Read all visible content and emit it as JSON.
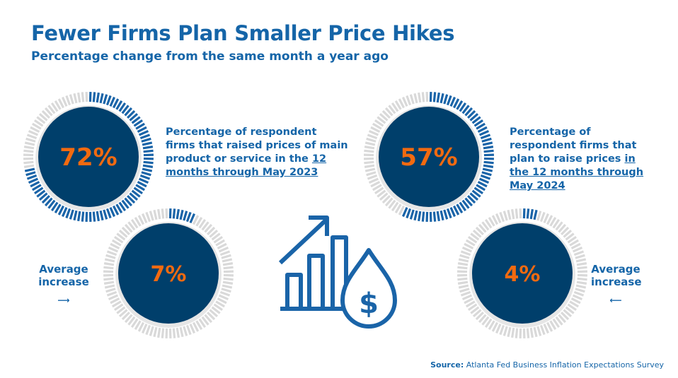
{
  "header": {
    "title": "Fewer Firms Plan Smaller Price Hikes",
    "subtitle": "Percentage change from the same month a year ago"
  },
  "chart_data": {
    "type": "gauge",
    "gauges": [
      {
        "label": "72%",
        "value": 72,
        "description_pre": "Percentage of respondent firms that raised prices of main product or service in the ",
        "description_link": "12 months through May 2023"
      },
      {
        "label": "7%",
        "value": 7,
        "caption": "Average increase"
      },
      {
        "label": "57%",
        "value": 57,
        "description_pre": "Percentage of respondent firms that plan to raise prices ",
        "description_link": "in the 12 months through May 2024"
      },
      {
        "label": "4%",
        "value": 4,
        "caption": "Average increase"
      }
    ],
    "max": 100
  },
  "colors": {
    "filled": "#1a64a8",
    "empty": "#d9d9d9",
    "circle": "#003f6b",
    "value": "#f26a10",
    "text": "#1565a8"
  },
  "icon": "bar-chart-arrow-dollar-drop-icon",
  "footer": {
    "source_label": "Source:",
    "source_text": "Atlanta Fed Business Inflation Expectations Survey"
  }
}
